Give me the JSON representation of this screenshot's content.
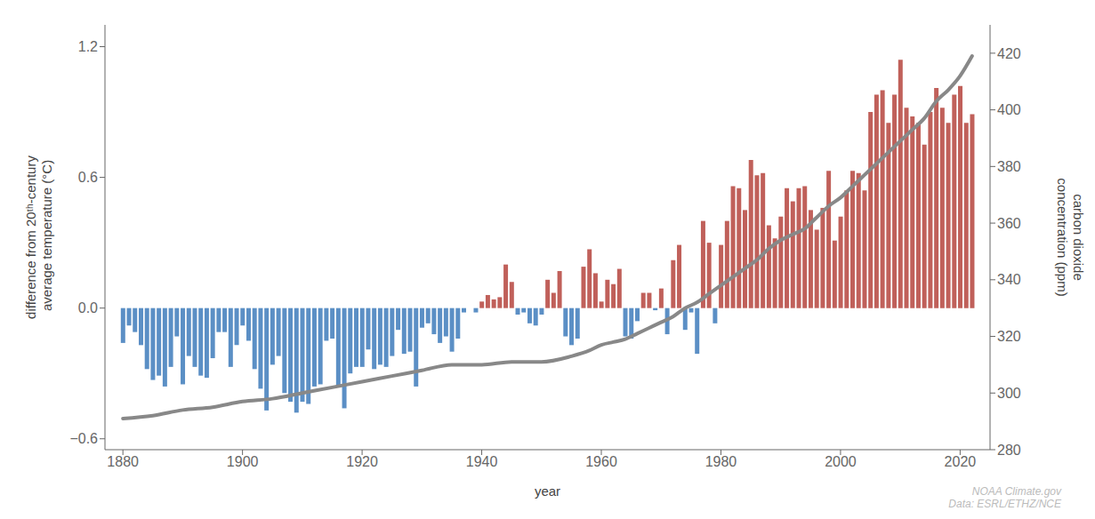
{
  "chart_data": {
    "type": "bar",
    "xlabel": "year",
    "ylabel": "difference from 20ᵗʰ-century\n average temperature (°C)",
    "y2label": "carbon dioxide\nconcentration (ppm)",
    "annotation": "NOAA Climate.gov\nData: ESRL/ETHZ/NCE",
    "grid": false,
    "x": [
      1880,
      1881,
      1882,
      1883,
      1884,
      1885,
      1886,
      1887,
      1888,
      1889,
      1890,
      1891,
      1892,
      1893,
      1894,
      1895,
      1896,
      1897,
      1898,
      1899,
      1900,
      1901,
      1902,
      1903,
      1904,
      1905,
      1906,
      1907,
      1908,
      1909,
      1910,
      1911,
      1912,
      1913,
      1914,
      1915,
      1916,
      1917,
      1918,
      1919,
      1920,
      1921,
      1922,
      1923,
      1924,
      1925,
      1926,
      1927,
      1928,
      1929,
      1930,
      1931,
      1932,
      1933,
      1934,
      1935,
      1936,
      1937,
      1938,
      1939,
      1940,
      1941,
      1942,
      1943,
      1944,
      1945,
      1946,
      1947,
      1948,
      1949,
      1950,
      1951,
      1952,
      1953,
      1954,
      1955,
      1956,
      1957,
      1958,
      1959,
      1960,
      1961,
      1962,
      1963,
      1964,
      1965,
      1966,
      1967,
      1968,
      1969,
      1970,
      1971,
      1972,
      1973,
      1974,
      1975,
      1976,
      1977,
      1978,
      1979,
      1980,
      1981,
      1982,
      1983,
      1984,
      1985,
      1986,
      1987,
      1988,
      1989,
      1990,
      1991,
      1992,
      1993,
      1994,
      1995,
      1996,
      1997,
      1998,
      1999,
      2000,
      2001,
      2002,
      2003,
      2004,
      2005,
      2006,
      2007,
      2008,
      2009,
      2010,
      2011,
      2012,
      2013,
      2014,
      2015,
      2016,
      2017,
      2018,
      2019,
      2020,
      2021,
      2022
    ],
    "xlim": [
      1877,
      2025
    ],
    "xticks": [
      1880,
      1900,
      1920,
      1940,
      1960,
      1980,
      2000,
      2020
    ],
    "ylim": [
      -0.65,
      1.3
    ],
    "yticks": [
      {
        "value": -0.6,
        "label": "−0.6"
      },
      {
        "value": 0.0,
        "label": "0.0"
      },
      0.6,
      1.2
    ],
    "y2lim": [
      280,
      430
    ],
    "y2ticks": [
      280,
      300,
      320,
      340,
      360,
      380,
      400,
      420
    ],
    "series": [
      {
        "type": "bar",
        "values": [
          -0.16,
          -0.08,
          -0.11,
          -0.17,
          -0.28,
          -0.33,
          -0.31,
          -0.36,
          -0.27,
          -0.13,
          -0.35,
          -0.22,
          -0.27,
          -0.31,
          -0.32,
          -0.23,
          -0.11,
          -0.11,
          -0.27,
          -0.17,
          -0.08,
          -0.15,
          -0.28,
          -0.37,
          -0.47,
          -0.26,
          -0.22,
          -0.39,
          -0.43,
          -0.48,
          -0.43,
          -0.44,
          -0.36,
          -0.35,
          -0.15,
          -0.14,
          -0.36,
          -0.46,
          -0.3,
          -0.27,
          -0.27,
          -0.19,
          -0.28,
          -0.26,
          -0.27,
          -0.22,
          -0.1,
          -0.21,
          -0.2,
          -0.36,
          -0.09,
          -0.07,
          -0.12,
          -0.16,
          -0.13,
          -0.2,
          -0.14,
          -0.02,
          -0.0,
          -0.02,
          0.03,
          0.06,
          0.04,
          0.05,
          0.2,
          0.12,
          -0.03,
          -0.02,
          -0.07,
          -0.08,
          -0.03,
          0.13,
          0.07,
          0.17,
          -0.13,
          -0.17,
          -0.14,
          0.19,
          0.27,
          0.16,
          0.03,
          0.13,
          0.11,
          0.18,
          -0.13,
          -0.14,
          -0.06,
          0.07,
          0.07,
          -0.01,
          0.09,
          -0.12,
          0.22,
          0.29,
          -0.1,
          -0.02,
          -0.21,
          0.4,
          0.3,
          -0.07,
          0.29,
          0.4,
          0.56,
          0.55,
          0.45,
          0.68,
          0.61,
          0.62,
          0.38,
          0.32,
          0.42,
          0.55,
          0.49,
          0.55,
          0.56,
          0.45,
          0.36,
          0.46,
          0.63,
          0.31,
          0.42,
          0.54,
          0.63,
          0.62,
          0.54,
          0.9,
          0.98,
          1.0,
          0.85,
          0.98,
          1.14,
          0.92,
          0.88,
          0.85,
          0.75,
          0.9,
          1.01,
          0.92,
          0.85,
          0.98,
          1.02,
          0.85,
          0.89
        ],
        "colors": [
          "#5b8fc5",
          "#5b8fc5",
          "#5b8fc5",
          "#5b8fc5",
          "#5b8fc5",
          "#5b8fc5",
          "#5b8fc5",
          "#5b8fc5",
          "#5b8fc5",
          "#5b8fc5",
          "#5b8fc5",
          "#5b8fc5",
          "#5b8fc5",
          "#5b8fc5",
          "#5b8fc5",
          "#5b8fc5",
          "#5b8fc5",
          "#5b8fc5",
          "#5b8fc5",
          "#5b8fc5",
          "#5b8fc5",
          "#5b8fc5",
          "#5b8fc5",
          "#5b8fc5",
          "#5b8fc5",
          "#5b8fc5",
          "#5b8fc5",
          "#5b8fc5",
          "#5b8fc5",
          "#5b8fc5",
          "#5b8fc5",
          "#5b8fc5",
          "#5b8fc5",
          "#5b8fc5",
          "#5b8fc5",
          "#5b8fc5",
          "#5b8fc5",
          "#5b8fc5",
          "#5b8fc5",
          "#5b8fc5",
          "#5b8fc5",
          "#5b8fc5",
          "#5b8fc5",
          "#5b8fc5",
          "#5b8fc5",
          "#5b8fc5",
          "#5b8fc5",
          "#5b8fc5",
          "#5b8fc5",
          "#5b8fc5",
          "#5b8fc5",
          "#5b8fc5",
          "#5b8fc5",
          "#5b8fc5",
          "#5b8fc5",
          "#5b8fc5",
          "#5b8fc5",
          "#5b8fc5",
          "#c0605a",
          "#5b8fc5",
          "#c0605a",
          "#c0605a",
          "#c0605a",
          "#c0605a",
          "#c0605a",
          "#c0605a",
          "#5b8fc5",
          "#5b8fc5",
          "#5b8fc5",
          "#5b8fc5",
          "#5b8fc5",
          "#c0605a",
          "#c0605a",
          "#c0605a",
          "#5b8fc5",
          "#5b8fc5",
          "#5b8fc5",
          "#c0605a",
          "#c0605a",
          "#c0605a",
          "#c0605a",
          "#c0605a",
          "#c0605a",
          "#c0605a",
          "#5b8fc5",
          "#5b8fc5",
          "#5b8fc5",
          "#c0605a",
          "#c0605a",
          "#5b8fc5",
          "#c0605a",
          "#5b8fc5",
          "#c0605a",
          "#c0605a",
          "#5b8fc5",
          "#5b8fc5",
          "#5b8fc5",
          "#c0605a",
          "#c0605a",
          "#5b8fc5",
          "#c0605a",
          "#c0605a",
          "#c0605a",
          "#c0605a",
          "#c0605a",
          "#c0605a",
          "#c0605a",
          "#c0605a",
          "#c0605a",
          "#c0605a",
          "#c0605a",
          "#c0605a",
          "#c0605a",
          "#c0605a",
          "#c0605a",
          "#c0605a",
          "#c0605a",
          "#c0605a",
          "#c0605a",
          "#c0605a",
          "#c0605a",
          "#c0605a",
          "#c0605a",
          "#c0605a",
          "#c0605a",
          "#c0605a",
          "#c0605a",
          "#c0605a",
          "#c0605a",
          "#c0605a",
          "#c0605a",
          "#c0605a",
          "#c0605a",
          "#c0605a",
          "#c0605a",
          "#c0605a",
          "#c0605a",
          "#c0605a",
          "#c0605a",
          "#c0605a",
          "#c0605a",
          "#c0605a",
          "#c0605a"
        ]
      },
      {
        "type": "line",
        "axis": "y2",
        "color": "#888888",
        "x": [
          1880,
          1885,
          1890,
          1895,
          1900,
          1905,
          1910,
          1915,
          1920,
          1925,
          1930,
          1935,
          1940,
          1945,
          1950,
          1955,
          1958,
          1960,
          1962,
          1964,
          1966,
          1968,
          1970,
          1972,
          1974,
          1976,
          1978,
          1980,
          1982,
          1984,
          1986,
          1988,
          1990,
          1992,
          1994,
          1996,
          1998,
          2000,
          2002,
          2004,
          2006,
          2008,
          2010,
          2012,
          2014,
          2016,
          2018,
          2020,
          2022
        ],
        "values": [
          291,
          292,
          294,
          295,
          297,
          298,
          300,
          302,
          304,
          306,
          308,
          310,
          310,
          311,
          311,
          313,
          315,
          317,
          318,
          319,
          321,
          323,
          325,
          327,
          330,
          332,
          335,
          338,
          341,
          344,
          347,
          351,
          354,
          356,
          358,
          362,
          366,
          369,
          373,
          377,
          381,
          385,
          389,
          393,
          397,
          403,
          407,
          412,
          419
        ]
      }
    ]
  }
}
